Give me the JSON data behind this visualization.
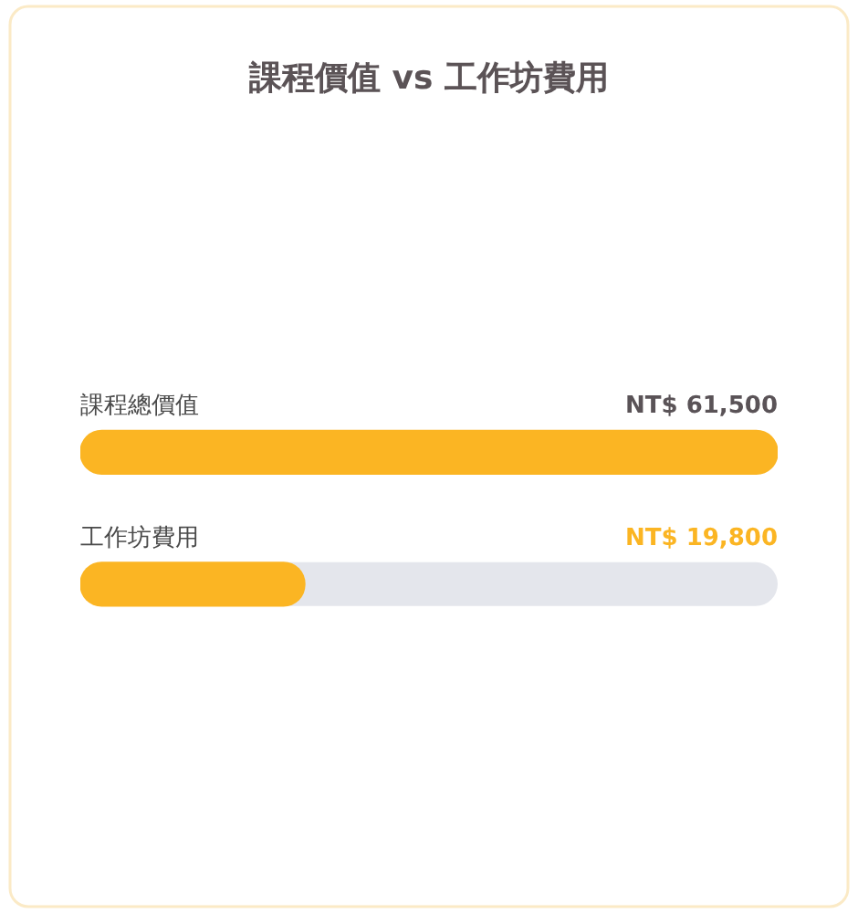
{
  "chart_data": {
    "type": "bar",
    "title": "課程價值 vs 工作坊費用",
    "orientation": "horizontal",
    "categories": [
      "課程總價值",
      "工作坊費用"
    ],
    "values": [
      61500,
      19800
    ],
    "color": "#fbb523",
    "value_labels": [
      "NT$ 61,500",
      "NT$ 19,800"
    ],
    "xlim": [
      0,
      61500
    ]
  }
}
